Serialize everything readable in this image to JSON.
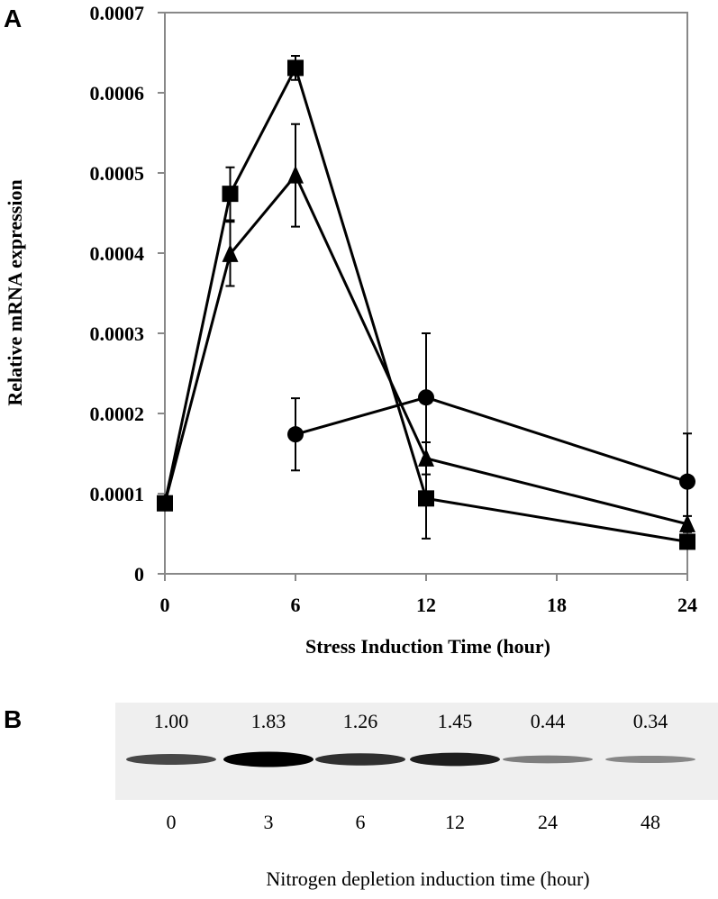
{
  "chart_data": {
    "type": "line",
    "panel_label": "A",
    "xlabel": "Stress Induction Time (hour)",
    "ylabel": "Relative mRNA expression",
    "x": [
      0,
      3,
      6,
      12,
      24
    ],
    "series": [
      {
        "marker": "square",
        "color": "#000000",
        "values": [
          8.8e-05,
          0.000474,
          0.000631,
          9.4e-05,
          4e-05
        ],
        "errors": [
          0,
          3.3e-05,
          1.5e-05,
          5e-05,
          6e-06
        ]
      },
      {
        "marker": "triangle",
        "color": "#000000",
        "values": [
          8.8e-05,
          0.000399,
          0.000497,
          0.000144,
          6.2e-05
        ],
        "errors": [
          0,
          4e-05,
          6.4e-05,
          2e-05,
          1e-05
        ]
      },
      {
        "marker": "circle",
        "color": "#000000",
        "values": [
          8.8e-05,
          null,
          0.000174,
          0.00022,
          0.000115
        ],
        "errors": [
          0,
          null,
          4.5e-05,
          8e-05,
          6e-05
        ]
      }
    ],
    "xlim": [
      0,
      24
    ],
    "xticks": [
      0,
      6,
      12,
      18,
      24
    ],
    "ylim": [
      0,
      0.0007
    ],
    "yticks": [
      0,
      0.0001,
      0.0002,
      0.0003,
      0.0004,
      0.0005,
      0.0006,
      0.0007
    ]
  },
  "blot": {
    "panel_label": "B",
    "xlabel": "Nitrogen depletion induction time (hour)",
    "lanes": [
      "0",
      "3",
      "6",
      "12",
      "24",
      "48"
    ],
    "intensities": [
      1.0,
      1.83,
      1.26,
      1.45,
      0.44,
      0.34
    ],
    "intensity_labels": [
      "1.00",
      "1.83",
      "1.26",
      "1.45",
      "0.44",
      "0.34"
    ]
  }
}
